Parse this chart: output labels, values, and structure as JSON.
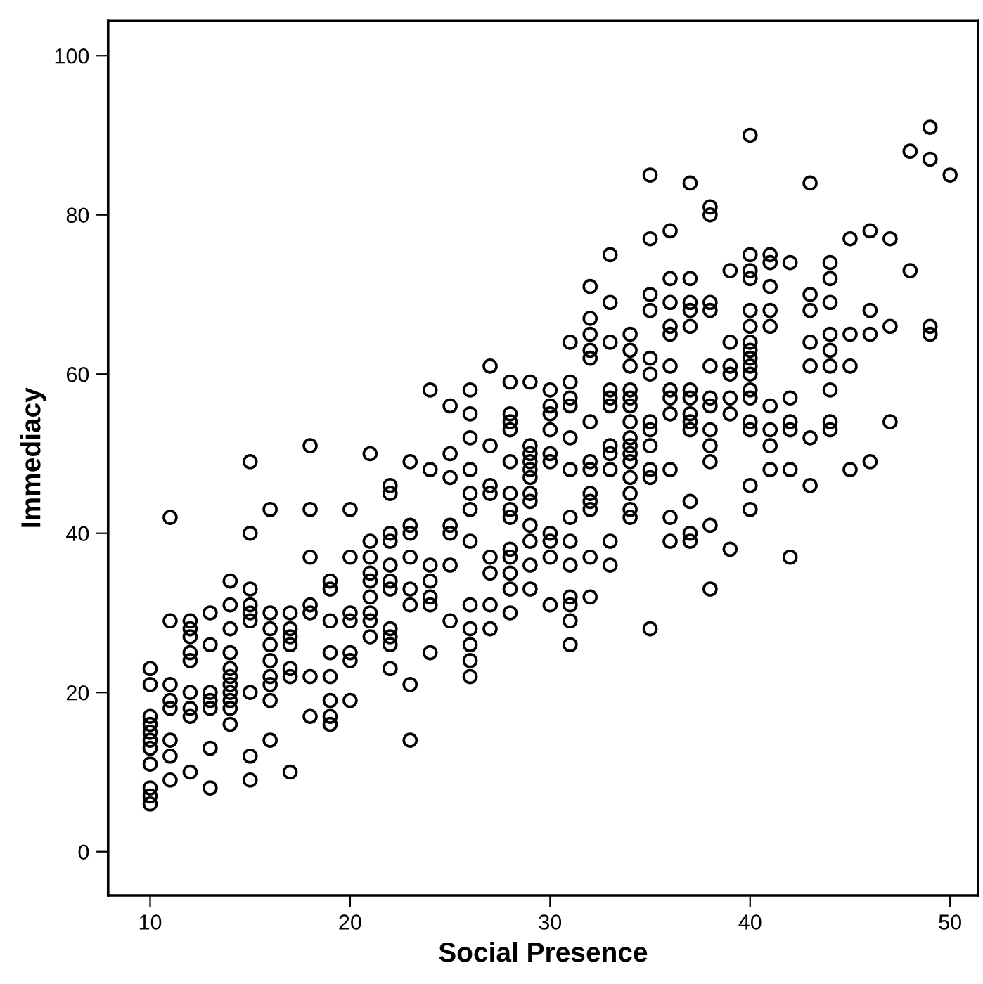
{
  "chart_data": {
    "type": "scatter",
    "xlabel": "Social Presence",
    "ylabel": "Immediacy",
    "xlim": [
      7.9,
      51.4
    ],
    "ylim": [
      -5.5,
      104.4
    ],
    "xticks": [
      10,
      20,
      30,
      40,
      50
    ],
    "yticks": [
      0,
      20,
      40,
      60,
      80,
      100
    ],
    "grid": false,
    "marker": "circle",
    "series": [
      {
        "color": "#000000",
        "x": [
          10,
          10,
          10,
          10,
          10,
          10,
          10,
          10,
          10,
          10,
          10,
          11,
          11,
          11,
          11,
          11,
          11,
          11,
          11,
          12,
          12,
          12,
          12,
          12,
          12,
          12,
          12,
          12,
          13,
          13,
          13,
          13,
          13,
          13,
          13,
          14,
          14,
          14,
          14,
          14,
          14,
          14,
          14,
          14,
          14,
          14,
          15,
          15,
          15,
          15,
          15,
          15,
          15,
          15,
          15,
          16,
          16,
          16,
          16,
          16,
          16,
          16,
          16,
          16,
          17,
          17,
          17,
          17,
          17,
          17,
          17,
          18,
          18,
          18,
          18,
          18,
          18,
          18,
          19,
          19,
          19,
          19,
          19,
          19,
          19,
          19,
          20,
          20,
          20,
          20,
          20,
          20,
          20,
          21,
          21,
          21,
          21,
          21,
          21,
          21,
          21,
          21,
          22,
          22,
          22,
          22,
          22,
          22,
          22,
          22,
          22,
          22,
          22,
          23,
          23,
          23,
          23,
          23,
          23,
          23,
          23,
          24,
          24,
          24,
          24,
          24,
          24,
          24,
          25,
          25,
          25,
          25,
          25,
          25,
          25,
          26,
          26,
          26,
          26,
          26,
          26,
          26,
          26,
          26,
          26,
          26,
          26,
          27,
          27,
          27,
          27,
          27,
          27,
          27,
          27,
          28,
          28,
          28,
          28,
          28,
          28,
          28,
          28,
          28,
          28,
          28,
          28,
          28,
          29,
          29,
          29,
          29,
          29,
          29,
          29,
          29,
          29,
          29,
          29,
          29,
          30,
          30,
          30,
          30,
          30,
          30,
          30,
          30,
          30,
          30,
          31,
          31,
          31,
          31,
          31,
          31,
          31,
          31,
          31,
          31,
          31,
          31,
          31,
          32,
          32,
          32,
          32,
          32,
          32,
          32,
          32,
          32,
          32,
          32,
          32,
          32,
          33,
          33,
          33,
          33,
          33,
          33,
          33,
          33,
          33,
          33,
          33,
          34,
          34,
          34,
          34,
          34,
          34,
          34,
          34,
          34,
          34,
          34,
          34,
          34,
          34,
          34,
          35,
          35,
          35,
          35,
          35,
          35,
          35,
          35,
          35,
          35,
          35,
          35,
          36,
          36,
          36,
          36,
          36,
          36,
          36,
          36,
          36,
          36,
          36,
          36,
          37,
          37,
          37,
          37,
          37,
          37,
          37,
          37,
          37,
          37,
          37,
          37,
          37,
          38,
          38,
          38,
          38,
          38,
          38,
          38,
          38,
          38,
          38,
          38,
          38,
          39,
          39,
          39,
          39,
          39,
          39,
          39,
          40,
          40,
          40,
          40,
          40,
          40,
          40,
          40,
          40,
          40,
          40,
          40,
          40,
          40,
          40,
          40,
          40,
          41,
          41,
          41,
          41,
          41,
          41,
          41,
          41,
          41,
          42,
          42,
          42,
          42,
          42,
          42,
          43,
          43,
          43,
          43,
          43,
          43,
          43,
          44,
          44,
          44,
          44,
          44,
          44,
          44,
          44,
          44,
          45,
          45,
          45,
          45,
          46,
          46,
          46,
          46,
          47,
          47,
          47,
          48,
          48,
          49,
          49,
          49,
          49,
          50
        ],
        "values": [
          23,
          21,
          17,
          16,
          15,
          14,
          13,
          11,
          8,
          7,
          6,
          42,
          29,
          21,
          19,
          18,
          14,
          12,
          9,
          29,
          28,
          27,
          25,
          24,
          20,
          18,
          17,
          10,
          30,
          26,
          20,
          19,
          18,
          13,
          8,
          34,
          31,
          28,
          25,
          23,
          22,
          21,
          20,
          19,
          18,
          16,
          49,
          40,
          33,
          31,
          30,
          29,
          20,
          12,
          9,
          43,
          30,
          28,
          26,
          24,
          22,
          21,
          19,
          14,
          30,
          28,
          27,
          26,
          23,
          22,
          10,
          51,
          43,
          37,
          31,
          30,
          22,
          17,
          34,
          33,
          29,
          25,
          22,
          19,
          17,
          16,
          43,
          37,
          30,
          29,
          25,
          24,
          19,
          50,
          39,
          37,
          35,
          34,
          32,
          30,
          29,
          27,
          46,
          45,
          40,
          39,
          36,
          34,
          33,
          28,
          27,
          26,
          23,
          49,
          41,
          40,
          37,
          33,
          31,
          21,
          14,
          58,
          48,
          36,
          34,
          32,
          31,
          25,
          56,
          50,
          47,
          41,
          40,
          36,
          29,
          58,
          55,
          52,
          48,
          45,
          43,
          39,
          31,
          28,
          26,
          24,
          22,
          61,
          51,
          46,
          45,
          37,
          35,
          31,
          28,
          59,
          55,
          54,
          53,
          49,
          45,
          43,
          42,
          38,
          37,
          35,
          33,
          30,
          59,
          51,
          50,
          49,
          48,
          47,
          45,
          44,
          41,
          39,
          36,
          33,
          58,
          56,
          55,
          53,
          50,
          49,
          40,
          39,
          37,
          31,
          64,
          59,
          57,
          56,
          52,
          48,
          42,
          39,
          36,
          32,
          31,
          29,
          26,
          71,
          67,
          65,
          63,
          62,
          54,
          49,
          48,
          45,
          44,
          43,
          37,
          32,
          75,
          69,
          64,
          58,
          57,
          56,
          51,
          50,
          48,
          39,
          36,
          65,
          63,
          61,
          58,
          57,
          56,
          54,
          52,
          51,
          50,
          49,
          47,
          45,
          43,
          42,
          85,
          77,
          70,
          68,
          62,
          60,
          54,
          53,
          51,
          48,
          47,
          28,
          78,
          72,
          69,
          66,
          65,
          61,
          58,
          57,
          55,
          48,
          42,
          39,
          84,
          72,
          69,
          68,
          66,
          58,
          57,
          55,
          54,
          53,
          44,
          40,
          39,
          81,
          80,
          69,
          68,
          61,
          57,
          56,
          53,
          51,
          49,
          41,
          33,
          73,
          64,
          61,
          60,
          57,
          55,
          38,
          90,
          75,
          73,
          72,
          68,
          66,
          64,
          63,
          62,
          61,
          60,
          58,
          57,
          54,
          53,
          46,
          43,
          75,
          74,
          71,
          68,
          66,
          56,
          53,
          51,
          48,
          74,
          57,
          54,
          53,
          48,
          37,
          84,
          70,
          68,
          64,
          61,
          52,
          46,
          74,
          72,
          69,
          65,
          63,
          61,
          58,
          54,
          53,
          77,
          65,
          61,
          48,
          78,
          68,
          65,
          49,
          77,
          66,
          54,
          88,
          73,
          91,
          87,
          66,
          65,
          85
        ]
      }
    ]
  }
}
